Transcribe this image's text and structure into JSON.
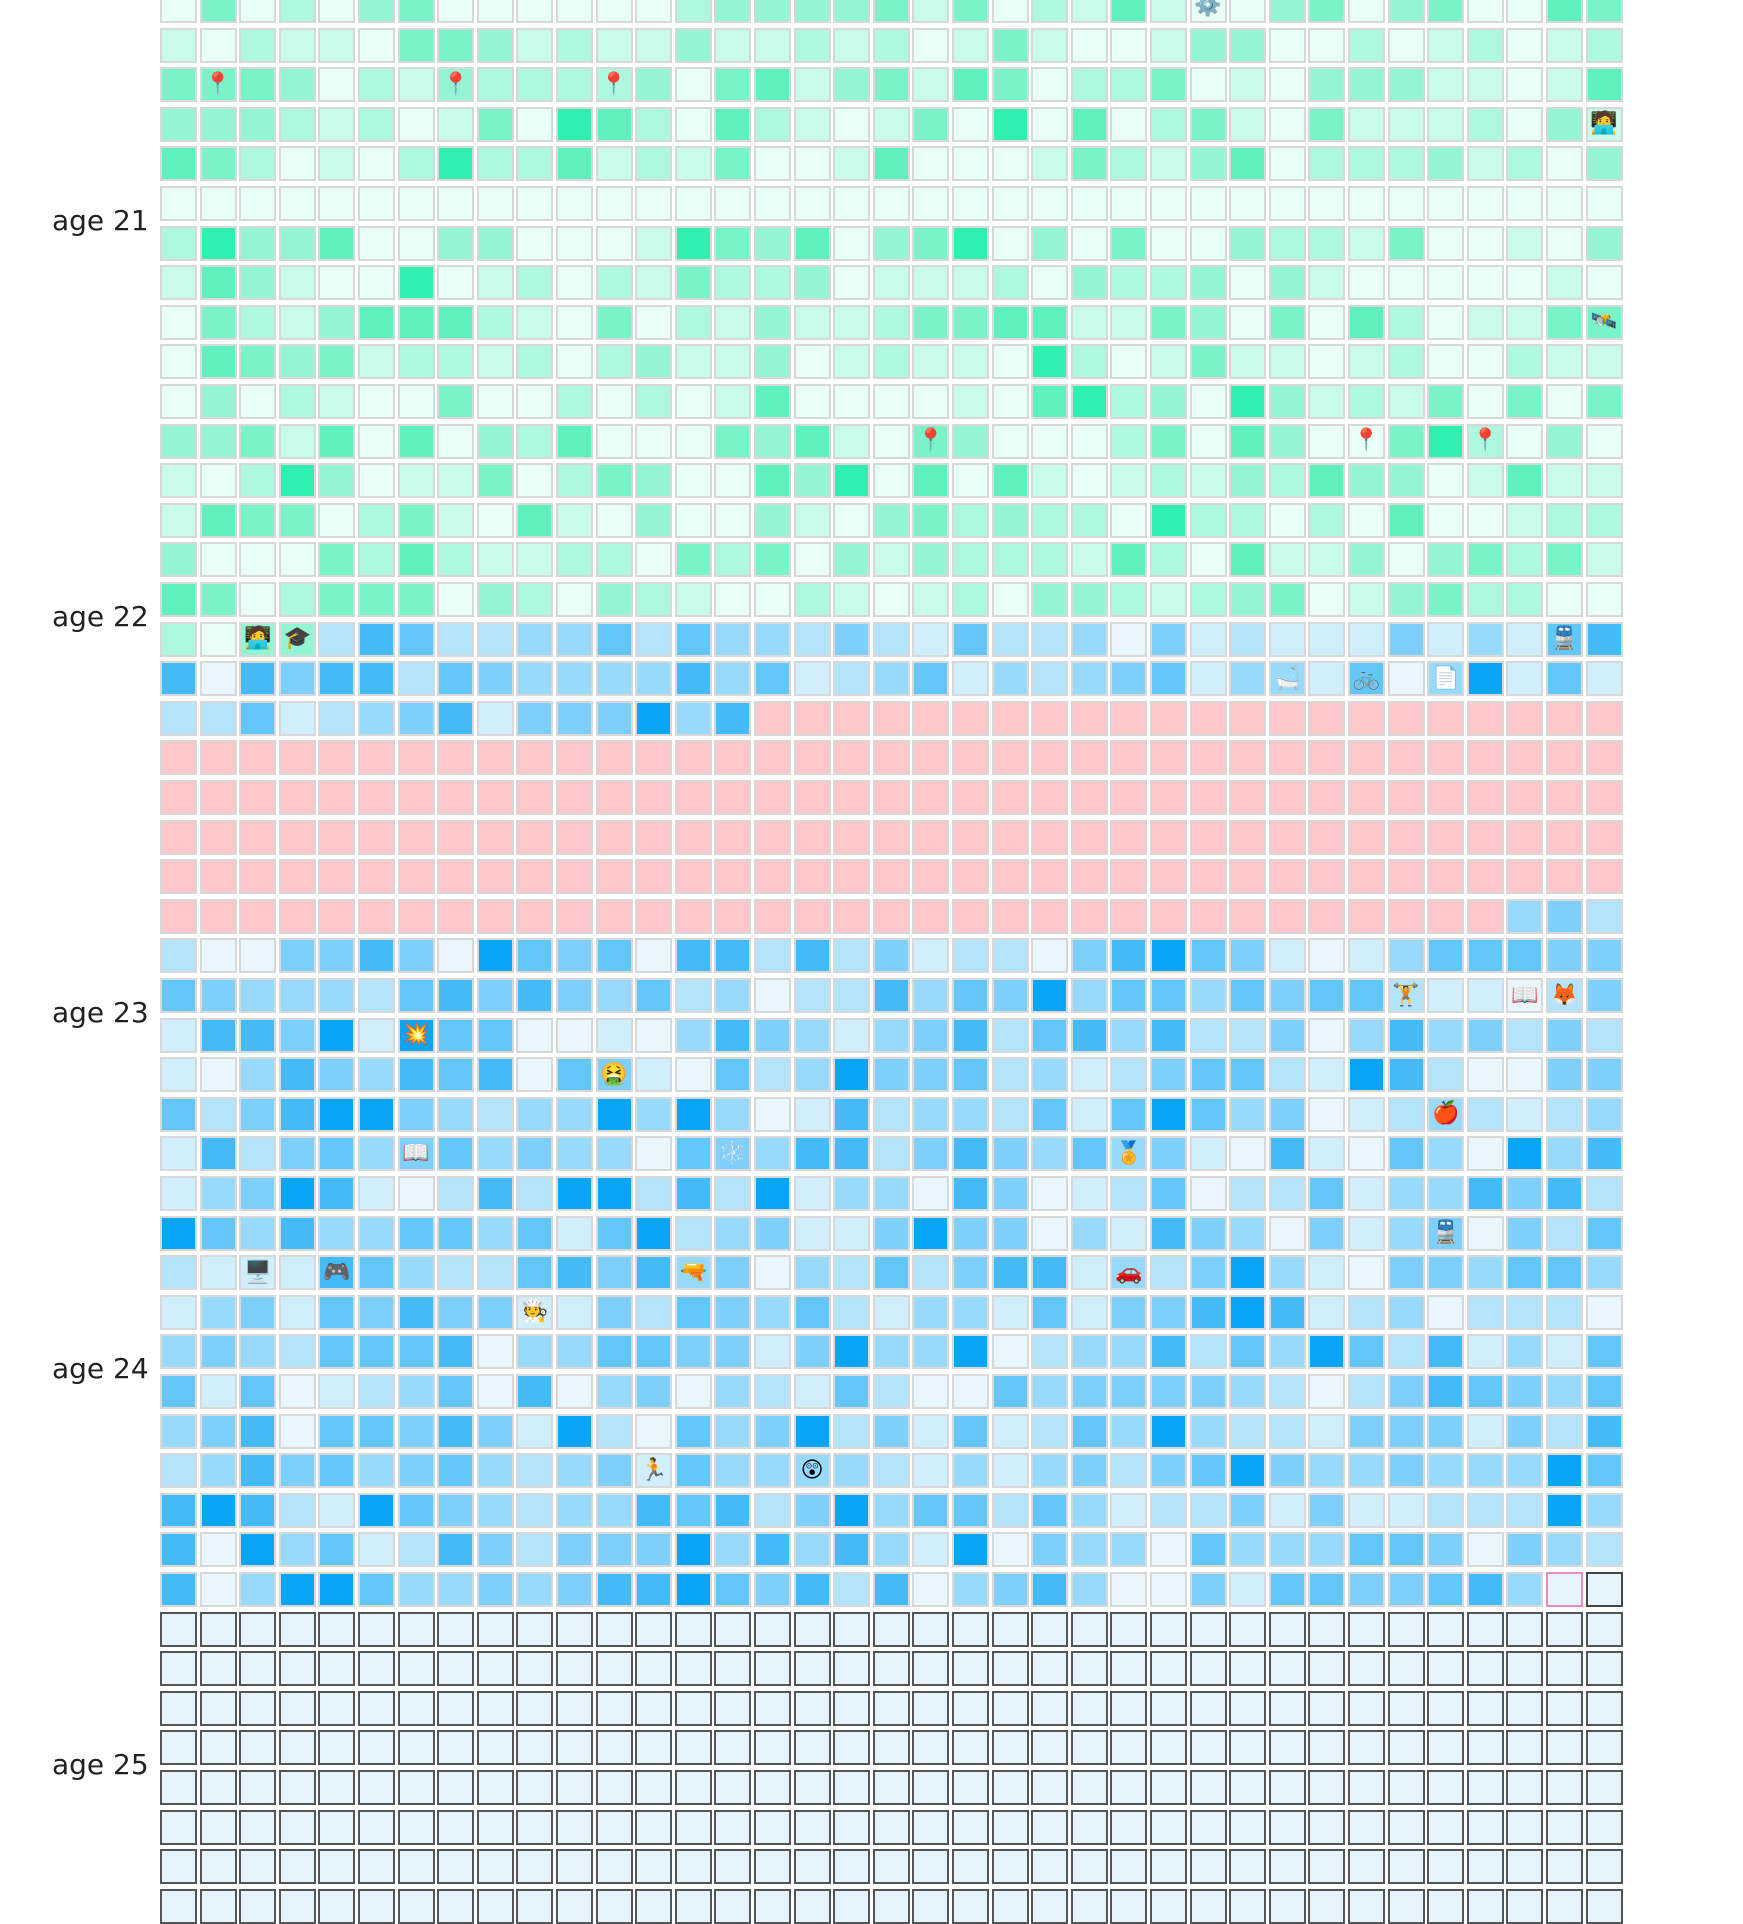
{
  "colors": {
    "green": [
      "#e8fff7",
      "#c9fbea",
      "#aef8df",
      "#93f5d3",
      "#7af3c8",
      "#5ef0bd",
      "#2ff0b0"
    ],
    "blue": [
      "#eaf6fd",
      "#d0eefc",
      "#b3e4fb",
      "#98dafb",
      "#7ed0fa",
      "#62c6f9",
      "#44baf8",
      "#0aa6f5"
    ],
    "pink": "#ffc7c9",
    "future": "#e6f5fd"
  },
  "ages": [
    {
      "label": "age 21",
      "row": 5
    },
    {
      "label": "age 22",
      "row": 15
    },
    {
      "label": "age 23",
      "row": 25
    },
    {
      "label": "age 24",
      "row": 34
    },
    {
      "label": "age 25",
      "row": 44
    }
  ],
  "icons": {
    "pin": "📍",
    "gear": "⚙️",
    "worker": "🧑‍💻",
    "satellite": "🛰️",
    "graduation": "🎓",
    "train": "🚆",
    "bathtub": "🛁",
    "bicycle": "🚲",
    "document": "📄",
    "weightlifter": "🏋️",
    "book": "📖",
    "fox": "🦊",
    "explosion": "💥",
    "sick": "🤮",
    "apple": "🍎",
    "snowflake": "❄️",
    "medal": "🏅",
    "computer": "🖥️",
    "gamepad": "🎮",
    "water-gun": "🔫",
    "car": "🚗",
    "cook": "🧑‍🍳",
    "runner": "🏃",
    "surprised": "😲"
  },
  "grid": {
    "cols": 37,
    "rows": 49
  },
  "placements": [
    {
      "row": 0,
      "col": 26,
      "icon": "gear"
    },
    {
      "row": 2,
      "col": 1,
      "icon": "pin"
    },
    {
      "row": 2,
      "col": 7,
      "icon": "pin"
    },
    {
      "row": 2,
      "col": 11,
      "icon": "pin"
    },
    {
      "row": 3,
      "col": 36,
      "icon": "worker"
    },
    {
      "row": 8,
      "col": 36,
      "icon": "satellite"
    },
    {
      "row": 11,
      "col": 19,
      "icon": "pin"
    },
    {
      "row": 11,
      "col": 30,
      "icon": "pin"
    },
    {
      "row": 11,
      "col": 33,
      "icon": "pin"
    },
    {
      "row": 16,
      "col": 2,
      "icon": "worker"
    },
    {
      "row": 16,
      "col": 3,
      "icon": "graduation"
    },
    {
      "row": 16,
      "col": 35,
      "icon": "train"
    },
    {
      "row": 17,
      "col": 28,
      "icon": "bathtub"
    },
    {
      "row": 17,
      "col": 30,
      "icon": "bicycle"
    },
    {
      "row": 17,
      "col": 32,
      "icon": "document"
    },
    {
      "row": 25,
      "col": 31,
      "icon": "weightlifter"
    },
    {
      "row": 25,
      "col": 34,
      "icon": "book"
    },
    {
      "row": 25,
      "col": 35,
      "icon": "fox"
    },
    {
      "row": 26,
      "col": 6,
      "icon": "explosion"
    },
    {
      "row": 27,
      "col": 11,
      "icon": "sick"
    },
    {
      "row": 28,
      "col": 32,
      "icon": "apple"
    },
    {
      "row": 29,
      "col": 6,
      "icon": "book"
    },
    {
      "row": 29,
      "col": 14,
      "icon": "snowflake"
    },
    {
      "row": 29,
      "col": 24,
      "icon": "medal"
    },
    {
      "row": 31,
      "col": 32,
      "icon": "train"
    },
    {
      "row": 32,
      "col": 2,
      "icon": "computer"
    },
    {
      "row": 32,
      "col": 4,
      "icon": "gamepad"
    },
    {
      "row": 32,
      "col": 13,
      "icon": "water-gun"
    },
    {
      "row": 32,
      "col": 24,
      "icon": "car"
    },
    {
      "row": 33,
      "col": 9,
      "icon": "cook"
    },
    {
      "row": 37,
      "col": 12,
      "icon": "runner"
    },
    {
      "row": 37,
      "col": 16,
      "icon": "surprised"
    }
  ]
}
